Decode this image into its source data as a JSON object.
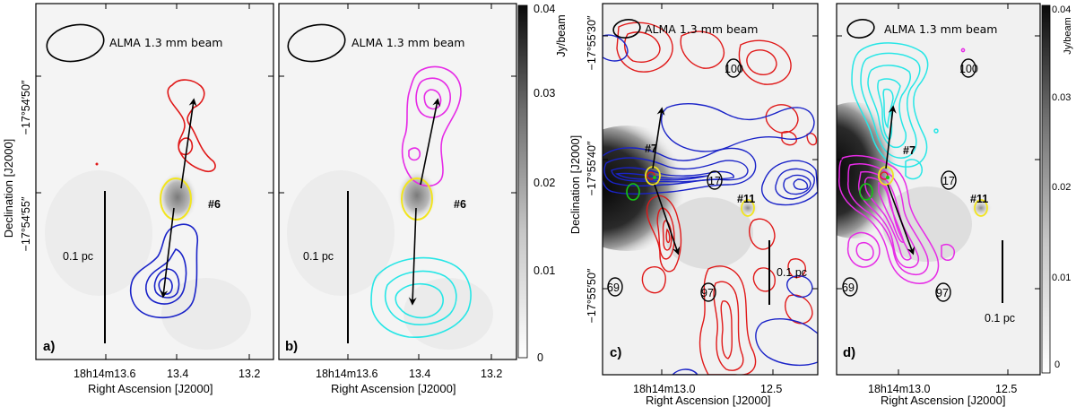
{
  "colors": {
    "red": "#e01818",
    "blue": "#1a23c8",
    "magenta": "#e62be6",
    "cyan": "#27e6e6",
    "yellow": "#f2e51e",
    "green": "#14c814",
    "black": "#000000"
  },
  "beam_label": "ALMA 1.3 mm beam",
  "scale_label": "0.1 pc",
  "xlabel": "Right Ascension [J2000]",
  "ylabel": "Declination [J2000]",
  "colorbar": {
    "unit": "Jy/beam",
    "ticks": [
      "0.04",
      "0.03",
      "0.02",
      "0.01",
      "0"
    ]
  },
  "panels": {
    "a": {
      "label": "a)",
      "source": "#6",
      "xticks": [
        "18h14m13.6",
        "13.4",
        "13.2"
      ],
      "yticks": [
        "−17°54′50″",
        "−17°54′55″"
      ]
    },
    "b": {
      "label": "b)",
      "source": "#6",
      "xticks": [
        "18h14m13.6",
        "13.4",
        "13.2"
      ]
    },
    "c": {
      "label": "c)",
      "sources": [
        "#7",
        "#11",
        "17",
        "100",
        "69",
        "97"
      ],
      "xticks": [
        "18h14m13.0",
        "12.5"
      ],
      "yticks": [
        "−17°55′30″",
        "−17°55′40″",
        "−17°55′50″"
      ]
    },
    "d": {
      "label": "d)",
      "sources": [
        "#7",
        "#11",
        "17",
        "100",
        "69",
        "97"
      ],
      "xticks": [
        "18h14m13.0",
        "12.5"
      ]
    }
  }
}
